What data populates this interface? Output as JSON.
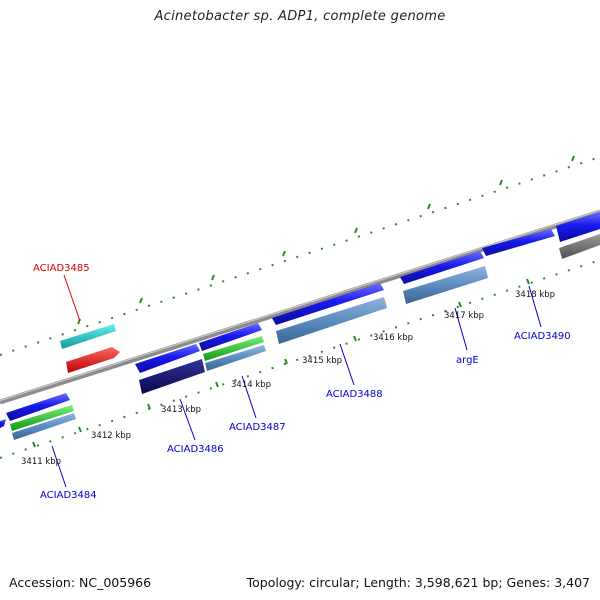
{
  "title": "Acinetobacter sp. ADP1, complete genome",
  "footer": {
    "accession": "Accession: NC_005966",
    "summary": "Topology: circular; Length: 3,598,621 bp; Genes: 3,407"
  },
  "ticks": [
    "3411 kbp",
    "3412 kbp",
    "3413 kbp",
    "3414 kbp",
    "3415 kbp",
    "3416 kbp",
    "3417 kbp",
    "3418 kbp"
  ],
  "gene_labels": [
    {
      "id": "ACIAD3485",
      "color": "#dd0000"
    },
    {
      "id": "ACIAD3484",
      "color": "#0000cc"
    },
    {
      "id": "ACIAD3486",
      "color": "#0000cc"
    },
    {
      "id": "ACIAD3487",
      "color": "#0000cc"
    },
    {
      "id": "ACIAD3488",
      "color": "#0000cc"
    },
    {
      "id": "argE",
      "color": "#0000cc"
    },
    {
      "id": "ACIAD3490",
      "color": "#0000cc"
    }
  ],
  "colors": {
    "backbone": "#8c8c8c",
    "tick_marks": "#2a8a2a",
    "cds": "#1a1aee",
    "cds_light": "#5a5aff",
    "gene_feature": "#5c8cc0",
    "misc_feature": "#22bb22",
    "trna": "#22cccc",
    "rrna": "#ee1111",
    "dark_cds": "#101070",
    "gray_feature": "#707070"
  }
}
